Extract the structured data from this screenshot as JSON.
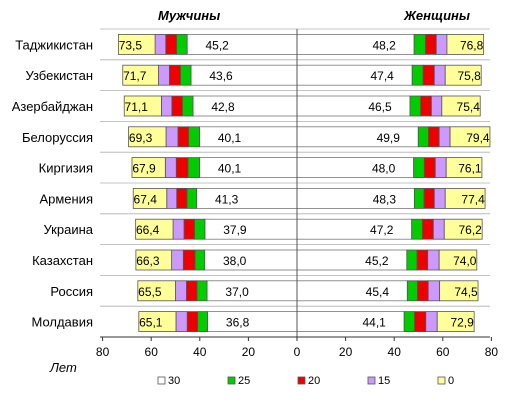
{
  "chart_data": {
    "type": "bar",
    "panels": [
      {
        "name": "Мужчины"
      },
      {
        "name": "Женщины"
      }
    ],
    "xlabel": "Лет",
    "xlim": [
      80,
      0,
      80
    ],
    "x_ticks": [
      "80",
      "60",
      "40",
      "20",
      "0",
      "20",
      "40",
      "60",
      "80"
    ],
    "categories": [
      "Таджикистан",
      "Узбекистан",
      "Азербайджан",
      "Белоруссия",
      "Киргизия",
      "Армения",
      "Украина",
      "Казахстан",
      "Россия",
      "Молдавия"
    ],
    "series": [
      {
        "name": "30",
        "color": "#ffffff",
        "men": [
          45.2,
          43.6,
          42.8,
          40.1,
          40.1,
          41.3,
          37.9,
          38.0,
          37.0,
          36.8
        ],
        "women": [
          48.2,
          47.4,
          46.5,
          49.9,
          48.0,
          48.3,
          47.2,
          45.2,
          45.4,
          44.1
        ]
      },
      {
        "name": "25",
        "color": "#00cc00",
        "men": [
          49.6,
          48.0,
          47.2,
          44.6,
          44.9,
          45.3,
          42.2,
          42.0,
          41.2,
          40.9
        ],
        "women": [
          52.9,
          51.9,
          50.9,
          54.1,
          52.4,
          52.3,
          51.6,
          49.4,
          49.6,
          48.4
        ]
      },
      {
        "name": "20",
        "color": "#ee0000",
        "men": [
          54.0,
          52.5,
          51.5,
          49.0,
          49.7,
          49.5,
          46.5,
          46.8,
          45.5,
          45.2
        ],
        "women": [
          57.3,
          56.5,
          55.3,
          58.5,
          56.9,
          56.5,
          56.1,
          53.8,
          54.0,
          53.0
        ]
      },
      {
        "name": "15",
        "color": "#cc99ff",
        "men": [
          58.4,
          57.0,
          55.8,
          53.9,
          54.2,
          53.6,
          51.0,
          51.6,
          50.0,
          49.8
        ],
        "women": [
          61.7,
          61.0,
          59.6,
          63.0,
          61.4,
          61.0,
          60.6,
          58.5,
          58.7,
          57.7
        ]
      },
      {
        "name": "0",
        "color": "#ffff99",
        "men": [
          73.5,
          71.7,
          71.1,
          69.3,
          67.9,
          67.4,
          66.4,
          66.3,
          65.5,
          65.1
        ],
        "women": [
          76.8,
          75.8,
          75.4,
          79.4,
          76.1,
          77.4,
          76.2,
          74.0,
          74.5,
          72.9
        ]
      }
    ],
    "labels": {
      "men_30": [
        "45,2",
        "43,6",
        "42,8",
        "40,1",
        "40,1",
        "41,3",
        "37,9",
        "38,0",
        "37,0",
        "36,8"
      ],
      "men_0": [
        "73,5",
        "71,7",
        "71,1",
        "69,3",
        "67,9",
        "67,4",
        "66,4",
        "66,3",
        "65,5",
        "65,1"
      ],
      "women_30": [
        "48,2",
        "47,4",
        "46,5",
        "49,9",
        "48,0",
        "48,3",
        "47,2",
        "45,2",
        "45,4",
        "44,1"
      ],
      "women_0": [
        "76,8",
        "75,8",
        "75,4",
        "79,4",
        "76,1",
        "77,4",
        "76,2",
        "74,0",
        "74,5",
        "72,9"
      ]
    },
    "legend": {
      "placement": "bottom",
      "entries": [
        "30",
        "25",
        "20",
        "15",
        "0"
      ]
    },
    "grid": false
  }
}
